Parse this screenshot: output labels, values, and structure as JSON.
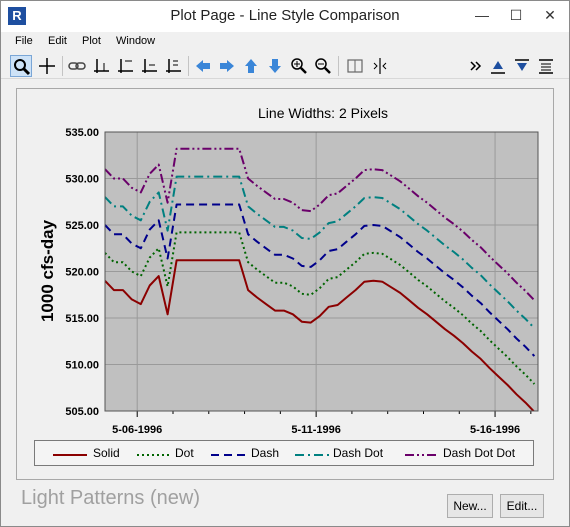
{
  "window": {
    "title": "Plot Page - Line Style Comparison",
    "app_icon_letter": "R",
    "minimize": "—",
    "maximize": "☐",
    "close": "✕"
  },
  "menu": [
    "File",
    "Edit",
    "Plot",
    "Window"
  ],
  "toolbar": {
    "tools": [
      "select-zoom",
      "crosshair",
      "link",
      "align-1",
      "align-2",
      "align-3",
      "align-4",
      "arrow-left",
      "arrow-right",
      "arrow-up",
      "arrow-down",
      "zoom-in",
      "zoom-out",
      "split",
      "marker",
      "more",
      "align-top",
      "align-bottom",
      "list"
    ]
  },
  "footer": {
    "pattern_label": "Light Patterns (new)",
    "new_button": "New...",
    "edit_button": "Edit..."
  },
  "chart_data": {
    "type": "line",
    "title": "Line Widths: 2 Pixels",
    "xlabel": "",
    "ylabel": "1000 cfs-day",
    "ylim": [
      505,
      535
    ],
    "yticks": [
      "535.00",
      "530.00",
      "525.00",
      "520.00",
      "515.00",
      "510.00",
      "505.00"
    ],
    "xticks": [
      {
        "label": "5-06-1996",
        "day": 6
      },
      {
        "label": "5-11-1996",
        "day": 11
      },
      {
        "label": "5-16-1996",
        "day": 16
      }
    ],
    "xlim_days": [
      5.1,
      17.2
    ],
    "grid": true,
    "legend_placement": "bottom",
    "background_color": "#c0c0c0",
    "x_days": [
      5.1,
      5.35,
      5.6,
      5.85,
      6.1,
      6.35,
      6.6,
      6.85,
      7.1,
      7.35,
      7.6,
      7.85,
      8.1,
      8.35,
      8.6,
      8.85,
      9.1,
      9.35,
      9.6,
      9.85,
      10.1,
      10.35,
      10.6,
      10.85,
      11.1,
      11.35,
      11.6,
      11.85,
      12.1,
      12.35,
      12.6,
      12.85,
      13.1,
      13.35,
      13.6,
      13.85,
      14.1,
      14.35,
      14.6,
      14.85,
      15.1,
      15.35,
      15.6,
      15.85,
      16.1,
      16.35,
      16.6,
      16.85,
      17.1
    ],
    "series": [
      {
        "name": "Solid",
        "color": "#8b0000",
        "dash": "",
        "offset": 0
      },
      {
        "name": "Dot",
        "color": "#006400",
        "dash": "2,3",
        "offset": 3
      },
      {
        "name": "Dash",
        "color": "#00008b",
        "dash": "8,5",
        "offset": 6
      },
      {
        "name": "Dash Dot",
        "color": "#008080",
        "dash": "9,4,2,4",
        "offset": 9
      },
      {
        "name": "Dash Dot Dot",
        "color": "#6a006a",
        "dash": "9,3,2,3,2,3",
        "offset": 12
      }
    ],
    "base_values": [
      519.0,
      518.0,
      518.0,
      517.0,
      516.5,
      518.5,
      519.5,
      515.4,
      521.2,
      521.2,
      521.2,
      521.2,
      521.2,
      521.2,
      521.2,
      521.2,
      518.0,
      517.2,
      516.5,
      515.8,
      515.8,
      515.4,
      514.6,
      514.5,
      515.2,
      516.2,
      516.4,
      517.2,
      518.0,
      518.9,
      519.0,
      518.9,
      518.3,
      517.7,
      516.9,
      516.1,
      515.4,
      514.6,
      513.8,
      513.1,
      512.3,
      511.4,
      510.6,
      509.6,
      508.7,
      507.8,
      506.8,
      505.9,
      504.9
    ]
  },
  "legend": {
    "items": [
      "Solid",
      "Dot",
      "Dash",
      "Dash Dot",
      "Dash Dot Dot"
    ]
  }
}
